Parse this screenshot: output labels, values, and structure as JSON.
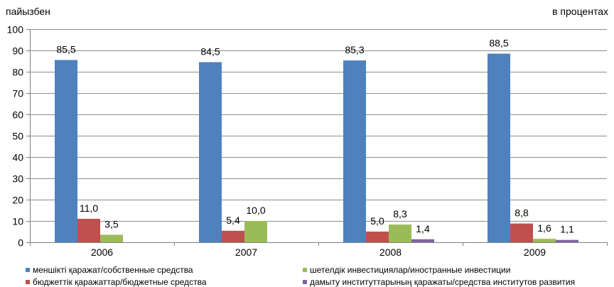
{
  "chart_data": {
    "type": "bar",
    "unit_left": "пайызбен",
    "unit_right": "в процентах",
    "categories": [
      "2006",
      "2007",
      "2008",
      "2009"
    ],
    "ylim": [
      0,
      100
    ],
    "yticks": [
      0,
      10,
      20,
      30,
      40,
      50,
      60,
      70,
      80,
      90,
      100
    ],
    "grid": true,
    "legend_position": "bottom",
    "series": [
      {
        "name": "меншікті қаражат/собственные средства",
        "color": "#4F81BD",
        "values": [
          85.5,
          84.5,
          85.3,
          88.5
        ],
        "labels": [
          "85,5",
          "84,5",
          "85,3",
          "88,5"
        ]
      },
      {
        "name": "бюджеттік қаражаттар/бюджетные средства",
        "color": "#C0504D",
        "values": [
          11.0,
          5.4,
          5.0,
          8.8
        ],
        "labels": [
          "11,0",
          "5,4",
          "5,0",
          "8,8"
        ]
      },
      {
        "name": "шетелдік инвестициялар/иностранные инвестиции",
        "color": "#9BBB59",
        "values": [
          3.5,
          10.0,
          8.3,
          1.6
        ],
        "labels": [
          "3,5",
          "10,0",
          "8,3",
          "1,6"
        ]
      },
      {
        "name": "дамыту институттарының қаражаты/средства институтов развития",
        "color": "#8064A2",
        "values": [
          null,
          null,
          1.4,
          1.1
        ],
        "labels": [
          "",
          "",
          "1,4",
          "1,1"
        ]
      }
    ]
  }
}
